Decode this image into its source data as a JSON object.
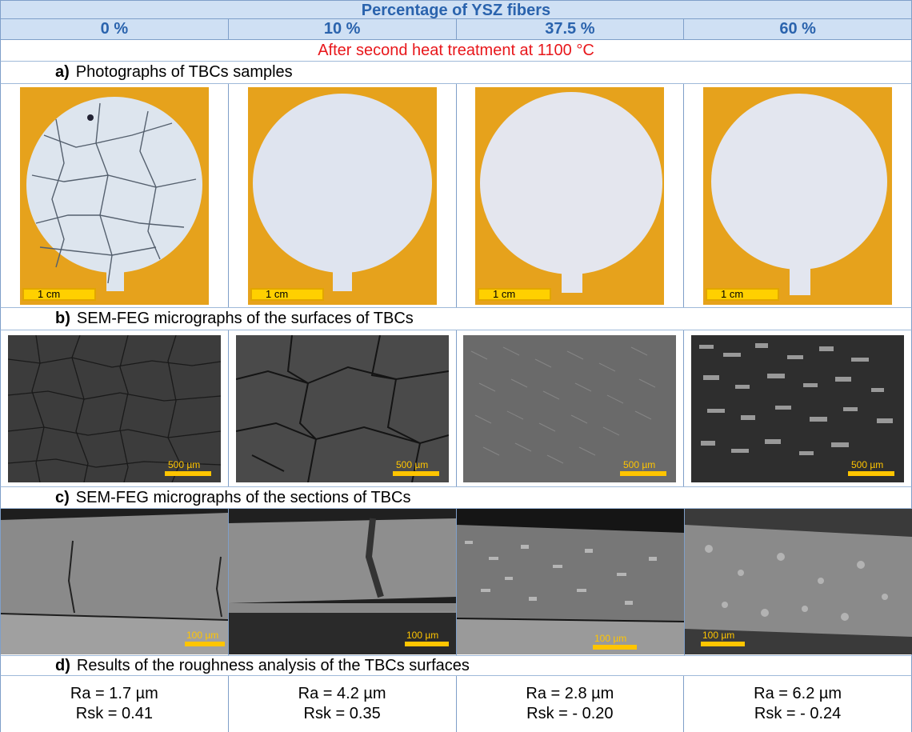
{
  "header": {
    "title": "Percentage of YSZ fibers",
    "columns": [
      "0 %",
      "10 %",
      "37.5 %",
      "60 %"
    ]
  },
  "subtitle": "After second heat treatment at 1100 °C",
  "sections": {
    "a": {
      "letter": "a)",
      "label": "Photographs of TBCs samples",
      "scale": "1 cm"
    },
    "b": {
      "letter": "b)",
      "label": "SEM-FEG micrographs of the surfaces of TBCs",
      "scale": "500 µm"
    },
    "c": {
      "letter": "c)",
      "label": "SEM-FEG micrographs of the sections of TBCs",
      "scale": "100 µm"
    },
    "d": {
      "letter": "d)",
      "label": "Results of the roughness analysis of the TBCs surfaces"
    }
  },
  "results": [
    {
      "ra": "Ra = 1.7 µm",
      "rsk": "Rsk = 0.41"
    },
    {
      "ra": "Ra = 4.2 µm",
      "rsk": "Rsk = 0.35"
    },
    {
      "ra": "Ra = 2.8 µm",
      "rsk": "Rsk = - 0.20"
    },
    {
      "ra": "Ra = 6.2 µm",
      "rsk": "Rsk = - 0.24"
    }
  ],
  "colors": {
    "header_bg": "#cfe0f4",
    "header_text": "#2a63ad",
    "subtitle": "#e8171b",
    "scale_bar": "#ffd000",
    "sample_bg": "#e6a21c"
  }
}
